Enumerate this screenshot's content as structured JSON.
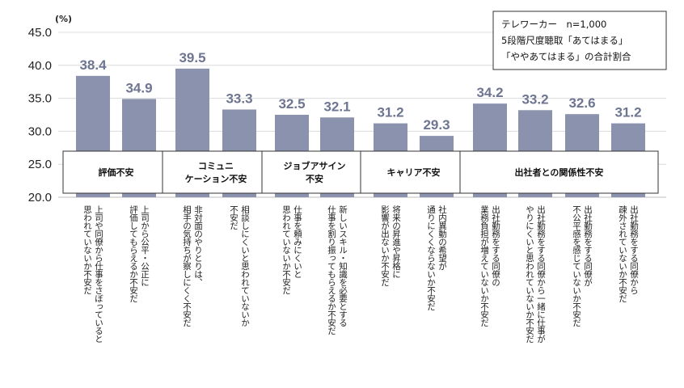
{
  "chart_data": {
    "type": "bar",
    "unit": "(%)",
    "ylim": [
      20,
      45
    ],
    "yticks": [
      "45.0",
      "40.0",
      "35.0",
      "30.0",
      "25.0",
      "20.0"
    ],
    "bar_color": "#8b92ad",
    "value_label_color": "#6e7591",
    "note": [
      "テレワーカー　n=1,000",
      "5段階尺度聴取「あてはまる」",
      "「ややあてはまる」の合計割合"
    ],
    "groups": [
      {
        "label": [
          "評価不安"
        ],
        "start": 0,
        "end": 1
      },
      {
        "label": [
          "コミュニ",
          "ケーション不安"
        ],
        "start": 2,
        "end": 3
      },
      {
        "label": [
          "ジョブアサイン",
          "不安"
        ],
        "start": 4,
        "end": 5
      },
      {
        "label": [
          "キャリア不安"
        ],
        "start": 6,
        "end": 7
      },
      {
        "label": [
          "出社者との関係性不安"
        ],
        "start": 8,
        "end": 11
      }
    ],
    "categories": [
      [
        "上司や同僚から仕事をさぼっていると",
        "思われていないか不安だ"
      ],
      [
        "上司から公平・公正に",
        "評価してもらえるか不安だ"
      ],
      [
        "非対面のやりとりは、",
        "相手の気持ちが察しにくく不安だ"
      ],
      [
        "相談しにくいと思われていないか",
        "不安だ"
      ],
      [
        "仕事を頼みにくいと",
        "思われていないか不安だ"
      ],
      [
        "新しいスキル・知識を必要とする",
        "仕事を割り振ってもらえるか不安だ"
      ],
      [
        "将来の昇進や昇格に",
        "影響が出ないか不安だ"
      ],
      [
        "社内異動の希望が",
        "通りにくくならないか不安だ"
      ],
      [
        "出社勤務をする同僚の",
        "業務負担が増えていないか不安だ"
      ],
      [
        "出社勤務をする同僚から一緒に仕事が",
        "やりにくいと思われていないか不安だ"
      ],
      [
        "出社勤務をする同僚が",
        "不公平感を感じていないか不安だ"
      ],
      [
        "出社勤務をする同僚から",
        "疎外されていないか不安だ"
      ]
    ],
    "values": [
      38.4,
      34.9,
      39.5,
      33.3,
      32.5,
      32.1,
      31.2,
      29.3,
      34.2,
      33.2,
      32.6,
      31.2
    ],
    "value_labels": [
      "38.4",
      "34.9",
      "39.5",
      "33.3",
      "32.5",
      "32.1",
      "31.2",
      "29.3",
      "34.2",
      "33.2",
      "32.6",
      "31.2"
    ]
  }
}
